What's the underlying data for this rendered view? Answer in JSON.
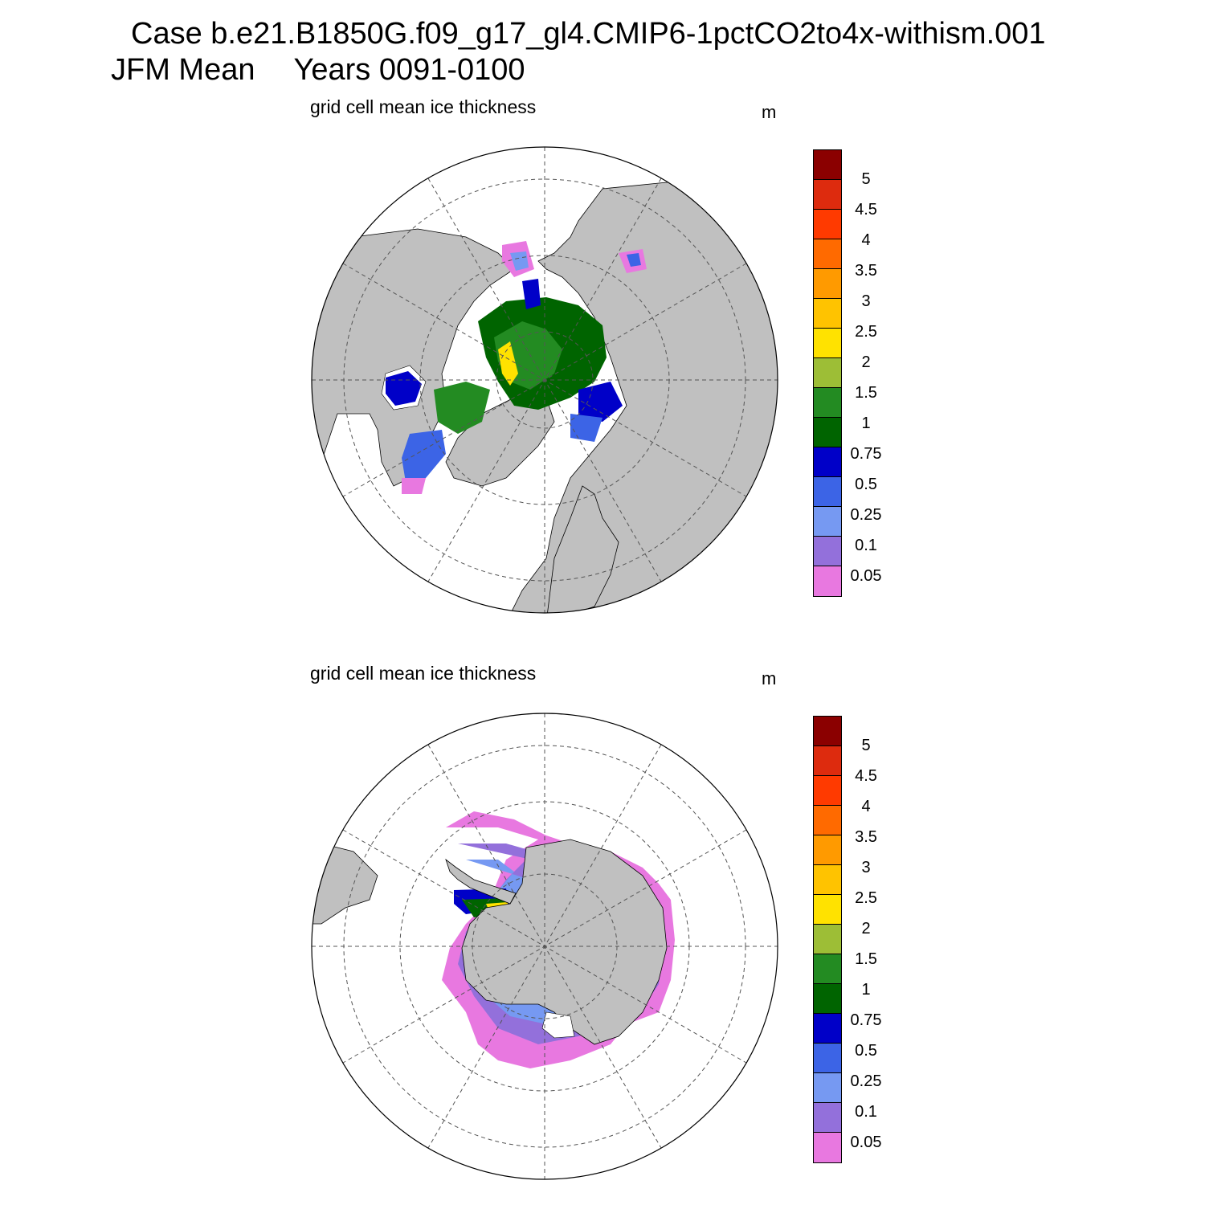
{
  "title": {
    "case": "Case b.e21.B1850G.f09_g17_gl4.CMIP6-1pctCO2to4x-withism.001",
    "season": "JFM Mean",
    "years": "Years 0091-0100"
  },
  "panels": [
    {
      "id": "north",
      "title": "grid cell mean ice thickness",
      "units": "m",
      "hemisphere": "Arctic (north polar stereographic)"
    },
    {
      "id": "south",
      "title": "grid cell mean ice thickness",
      "units": "m",
      "hemisphere": "Antarctic (south polar stereographic)"
    }
  ],
  "colorbar": {
    "labels": [
      "5",
      "4.5",
      "4",
      "3.5",
      "3",
      "2.5",
      "2",
      "1.5",
      "1",
      "0.75",
      "0.5",
      "0.25",
      "0.1",
      "0.05"
    ],
    "colors_top_to_bottom": [
      "#8b0000",
      "#dd2b0e",
      "#ff3a00",
      "#ff6a00",
      "#ff9a00",
      "#ffc300",
      "#ffe200",
      "#9dbe36",
      "#238b22",
      "#006400",
      "#0000c8",
      "#3c64e6",
      "#7699f2",
      "#9370db",
      "#e878e0"
    ]
  },
  "colors": {
    "land": "#c0c0c0",
    "ocean": "#ffffff",
    "grid": "#555555"
  }
}
